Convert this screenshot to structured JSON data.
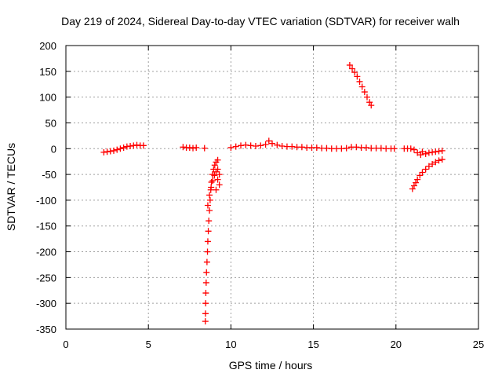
{
  "chart_data": {
    "type": "scatter",
    "title": "Day 219 of 2024, Sidereal Day-to-day VTEC variation (SDTVAR) for receiver walh",
    "xlabel": "GPS time / hours",
    "ylabel": "SDTVAR / TECUs",
    "xlim": [
      0,
      25
    ],
    "ylim": [
      -350,
      200
    ],
    "xticks": [
      0,
      5,
      10,
      15,
      20,
      25
    ],
    "yticks": [
      -350,
      -300,
      -250,
      -200,
      -150,
      -100,
      -50,
      0,
      50,
      100,
      150,
      200
    ],
    "grid": true,
    "marker": "+",
    "color": "#ff0000",
    "series": [
      {
        "name": "",
        "points": [
          [
            2.3,
            -7
          ],
          [
            2.5,
            -6
          ],
          [
            2.7,
            -5
          ],
          [
            2.9,
            -4
          ],
          [
            3.1,
            -2
          ],
          [
            3.3,
            0
          ],
          [
            3.5,
            2
          ],
          [
            3.7,
            4
          ],
          [
            3.9,
            5
          ],
          [
            4.1,
            6
          ],
          [
            4.3,
            7
          ],
          [
            4.5,
            6
          ],
          [
            4.7,
            6
          ],
          [
            7.1,
            3
          ],
          [
            7.3,
            2
          ],
          [
            7.5,
            2
          ],
          [
            7.7,
            1
          ],
          [
            7.9,
            2
          ],
          [
            8.4,
            1
          ],
          [
            8.45,
            -335
          ],
          [
            8.46,
            -320
          ],
          [
            8.47,
            -300
          ],
          [
            8.48,
            -280
          ],
          [
            8.5,
            -260
          ],
          [
            8.52,
            -240
          ],
          [
            8.55,
            -220
          ],
          [
            8.58,
            -200
          ],
          [
            8.6,
            -180
          ],
          [
            8.63,
            -160
          ],
          [
            8.66,
            -140
          ],
          [
            8.7,
            -120
          ],
          [
            8.74,
            -100
          ],
          [
            8.78,
            -80
          ],
          [
            8.82,
            -65
          ],
          [
            8.88,
            -50
          ],
          [
            8.95,
            -40
          ],
          [
            9.02,
            -32
          ],
          [
            9.1,
            -26
          ],
          [
            9.2,
            -22
          ],
          [
            8.6,
            -110
          ],
          [
            8.7,
            -90
          ],
          [
            8.8,
            -75
          ],
          [
            8.9,
            -62
          ],
          [
            9.0,
            -52
          ],
          [
            9.1,
            -45
          ],
          [
            9.2,
            -40
          ],
          [
            9.3,
            -50
          ],
          [
            9.2,
            -60
          ],
          [
            9.3,
            -70
          ],
          [
            9.1,
            -80
          ],
          [
            10.0,
            2
          ],
          [
            10.3,
            4
          ],
          [
            10.6,
            6
          ],
          [
            10.9,
            7
          ],
          [
            11.2,
            6
          ],
          [
            11.5,
            5
          ],
          [
            11.8,
            6
          ],
          [
            12.1,
            8
          ],
          [
            12.3,
            15
          ],
          [
            12.5,
            10
          ],
          [
            12.8,
            7
          ],
          [
            13.1,
            5
          ],
          [
            13.4,
            4
          ],
          [
            13.7,
            4
          ],
          [
            14.0,
            3
          ],
          [
            14.3,
            3
          ],
          [
            14.6,
            2
          ],
          [
            14.9,
            2
          ],
          [
            15.2,
            2
          ],
          [
            15.5,
            1
          ],
          [
            15.8,
            1
          ],
          [
            16.1,
            0
          ],
          [
            16.4,
            0
          ],
          [
            16.7,
            0
          ],
          [
            17.0,
            1
          ],
          [
            17.3,
            3
          ],
          [
            17.6,
            3
          ],
          [
            17.9,
            2
          ],
          [
            18.2,
            2
          ],
          [
            18.5,
            1
          ],
          [
            18.8,
            1
          ],
          [
            19.1,
            1
          ],
          [
            19.4,
            0
          ],
          [
            19.7,
            0
          ],
          [
            19.9,
            0
          ],
          [
            17.2,
            162
          ],
          [
            17.35,
            155
          ],
          [
            17.5,
            148
          ],
          [
            17.65,
            140
          ],
          [
            17.8,
            130
          ],
          [
            17.95,
            120
          ],
          [
            18.1,
            110
          ],
          [
            18.25,
            100
          ],
          [
            18.4,
            90
          ],
          [
            18.5,
            84
          ],
          [
            20.5,
            0
          ],
          [
            20.7,
            0
          ],
          [
            20.9,
            0
          ],
          [
            21.1,
            -2
          ],
          [
            21.3,
            -8
          ],
          [
            21.5,
            -12
          ],
          [
            21.6,
            -6
          ],
          [
            21.8,
            -10
          ],
          [
            22.0,
            -8
          ],
          [
            22.2,
            -7
          ],
          [
            22.4,
            -6
          ],
          [
            22.6,
            -5
          ],
          [
            22.8,
            -4
          ],
          [
            21.0,
            -78
          ],
          [
            21.1,
            -72
          ],
          [
            21.2,
            -66
          ],
          [
            21.3,
            -60
          ],
          [
            21.45,
            -52
          ],
          [
            21.6,
            -46
          ],
          [
            21.8,
            -40
          ],
          [
            22.0,
            -34
          ],
          [
            22.2,
            -30
          ],
          [
            22.4,
            -26
          ],
          [
            22.6,
            -23
          ],
          [
            22.8,
            -21
          ]
        ]
      }
    ]
  }
}
